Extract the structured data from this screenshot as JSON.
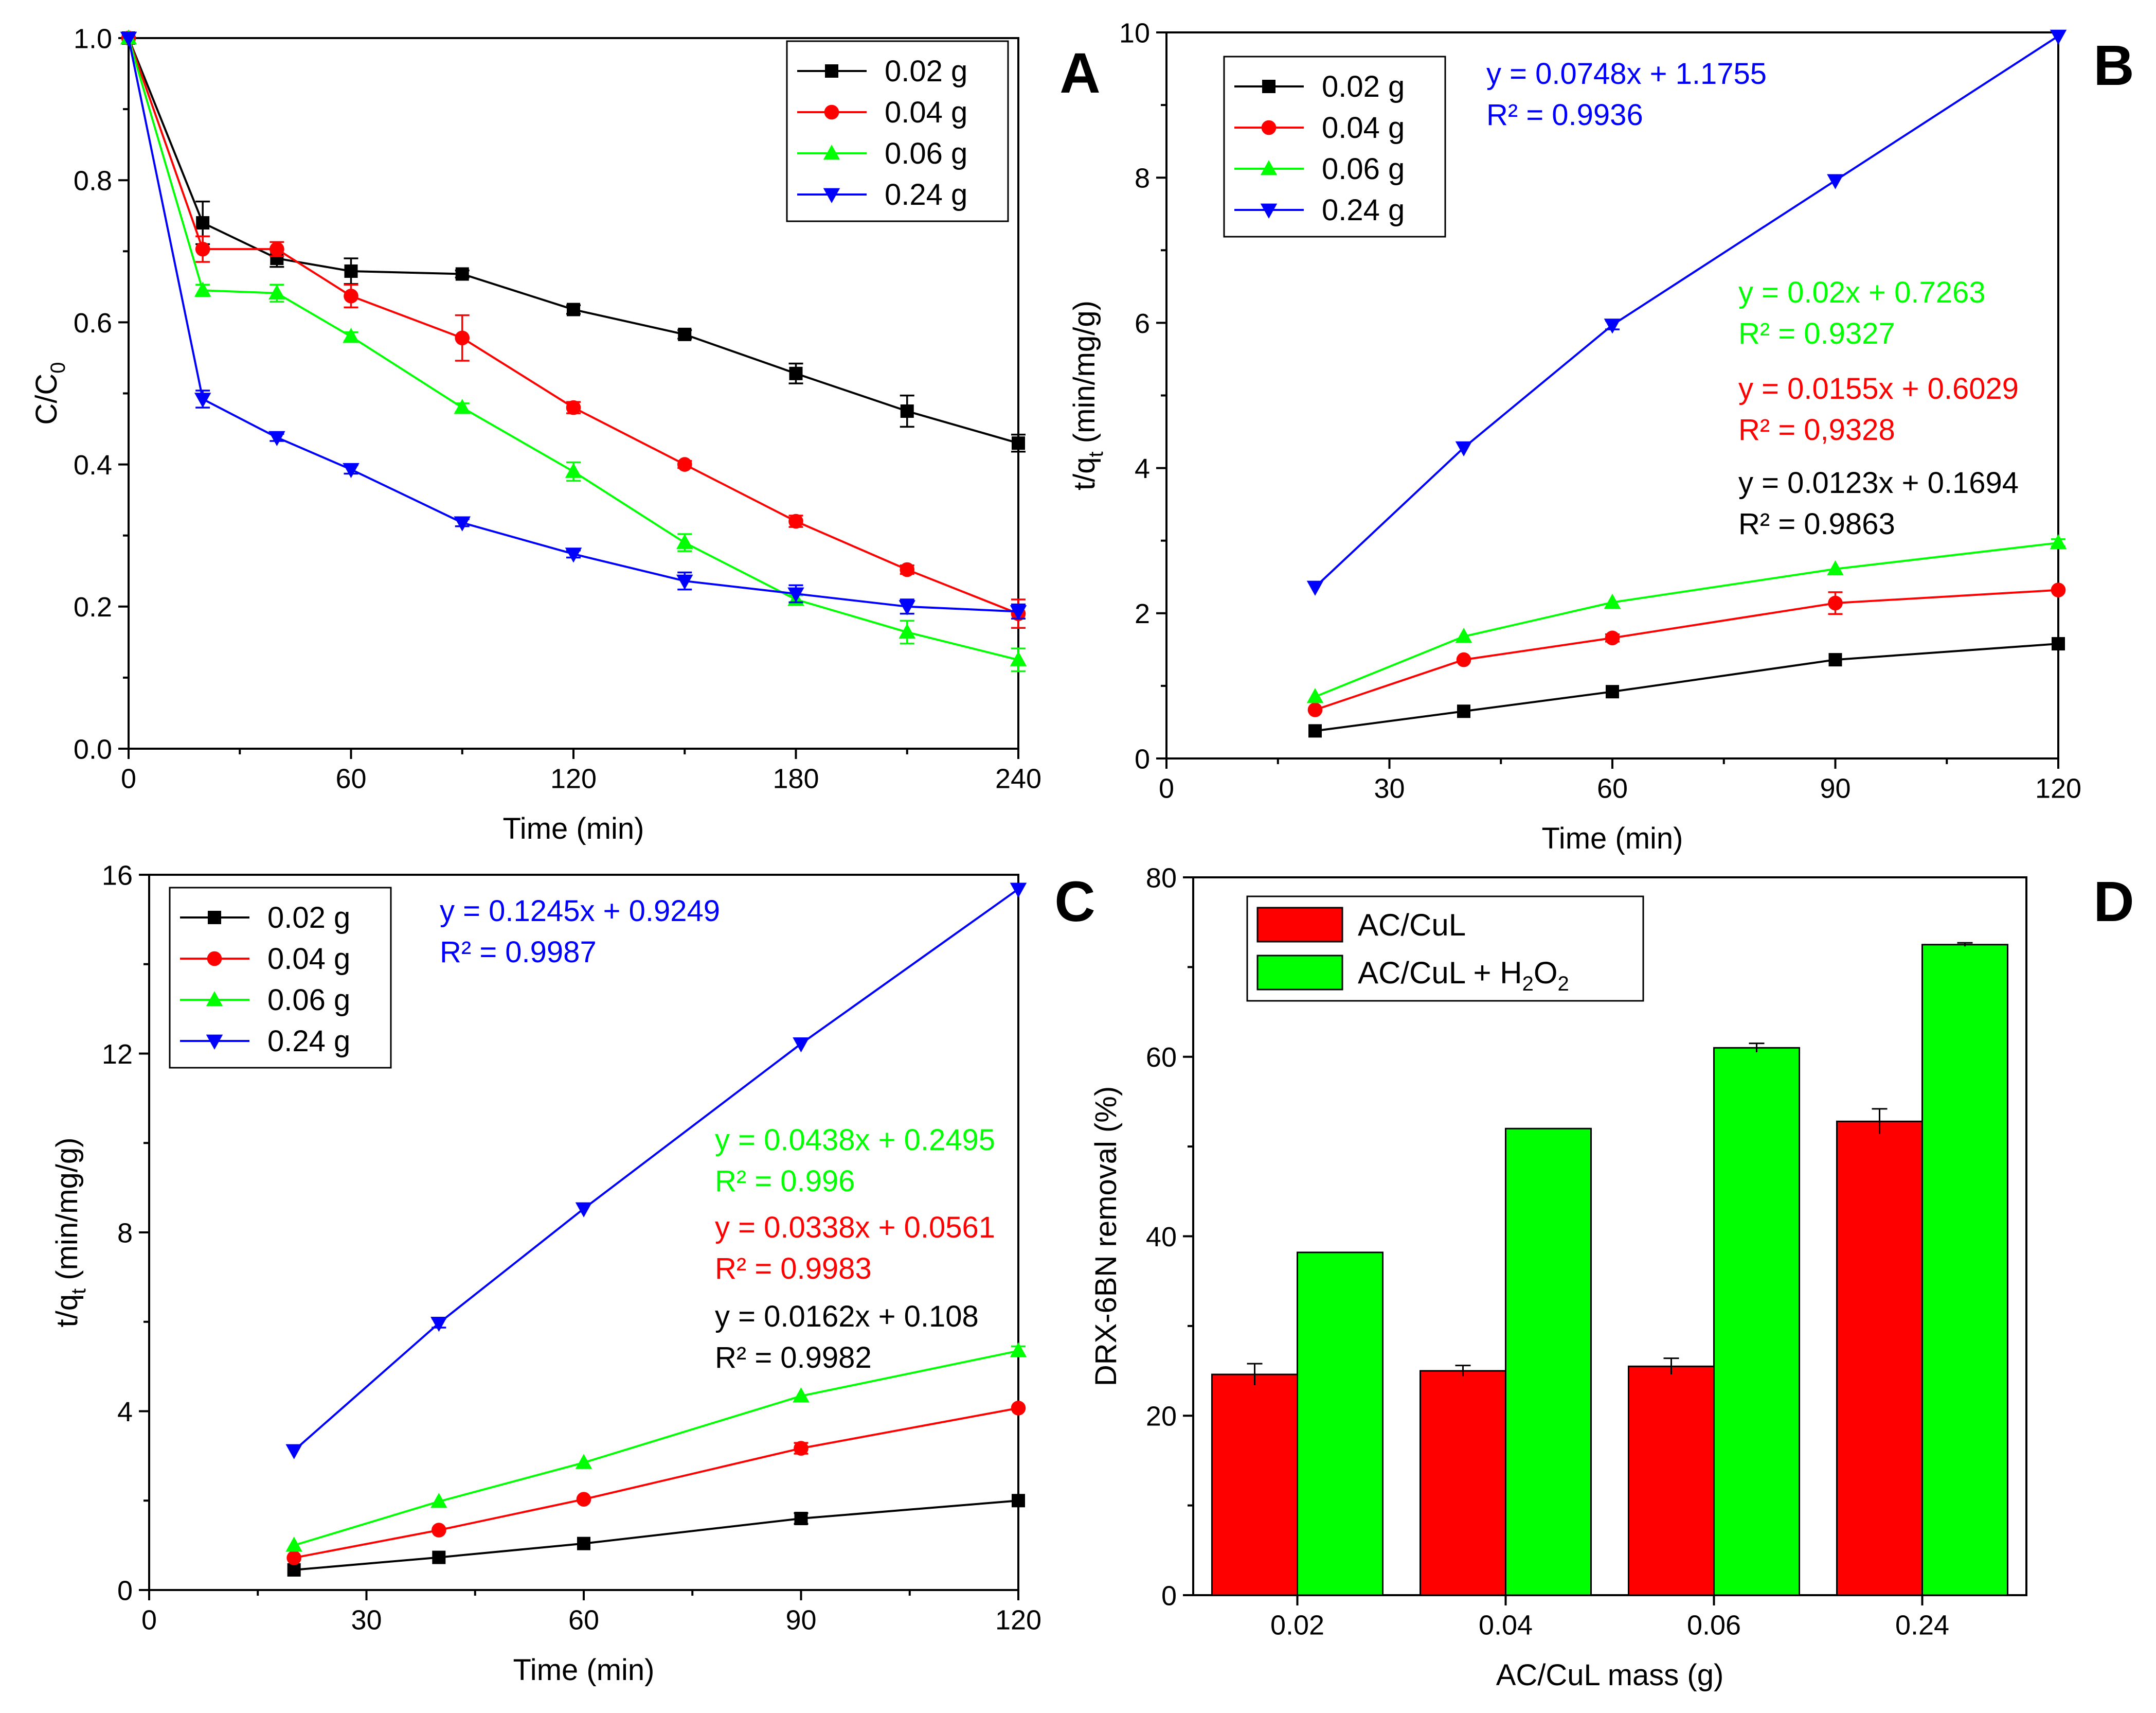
{
  "figure": {
    "description_free": true
  },
  "chart_data": [
    {
      "panel": "A",
      "type": "line",
      "title": "",
      "xlabel": "Time (min)",
      "ylabel": "C/C0",
      "ylabel_main": "C/C",
      "ylabel_sub": "0",
      "xlim": [
        0,
        240
      ],
      "ylim": [
        0,
        1.0
      ],
      "xticks": [
        0,
        60,
        120,
        180,
        240
      ],
      "xtick_labels": [
        "0",
        "60",
        "120",
        "180",
        "240"
      ],
      "yticks": [
        0,
        0.2,
        0.4,
        0.6,
        0.8,
        1.0
      ],
      "ytick_labels": [
        "0.0",
        "0.2",
        "0.4",
        "0.6",
        "0.8",
        "1.0"
      ],
      "legend_position": "top-right",
      "series": [
        {
          "name": "0.02 g",
          "color": "#000000",
          "marker": "square",
          "x": [
            0,
            20,
            40,
            60,
            90,
            120,
            150,
            180,
            210,
            240
          ],
          "y": [
            1.0,
            0.74,
            0.69,
            0.672,
            0.668,
            0.618,
            0.583,
            0.528,
            0.475,
            0.43
          ],
          "err": [
            0,
            0.03,
            0.012,
            0.018,
            0.005,
            0.006,
            0.006,
            0.014,
            0.022,
            0.012
          ]
        },
        {
          "name": "0.04 g",
          "color": "#ff0000",
          "marker": "circle",
          "x": [
            0,
            20,
            40,
            60,
            90,
            120,
            150,
            180,
            210,
            240
          ],
          "y": [
            1.0,
            0.703,
            0.703,
            0.637,
            0.578,
            0.48,
            0.4,
            0.32,
            0.252,
            0.19
          ],
          "err": [
            0,
            0.018,
            0.01,
            0.016,
            0.032,
            0.008,
            0.005,
            0.008,
            0.006,
            0.02
          ]
        },
        {
          "name": "0.06 g",
          "color": "#00ff00",
          "marker": "triangle-up",
          "x": [
            0,
            20,
            40,
            60,
            90,
            120,
            150,
            180,
            210,
            240
          ],
          "y": [
            1.0,
            0.645,
            0.641,
            0.58,
            0.48,
            0.39,
            0.29,
            0.21,
            0.164,
            0.125
          ],
          "err": [
            0,
            0.008,
            0.012,
            0.006,
            0.006,
            0.013,
            0.012,
            0.006,
            0.016,
            0.016
          ]
        },
        {
          "name": "0.24 g",
          "color": "#0000ff",
          "marker": "triangle-down",
          "x": [
            0,
            20,
            40,
            60,
            90,
            120,
            150,
            180,
            210,
            240
          ],
          "y": [
            1.0,
            0.492,
            0.438,
            0.393,
            0.318,
            0.274,
            0.236,
            0.218,
            0.2,
            0.193
          ],
          "err": [
            0,
            0.012,
            0.005,
            0.006,
            0.005,
            0.005,
            0.012,
            0.012,
            0.01,
            0.01
          ]
        }
      ],
      "annotations": []
    },
    {
      "panel": "B",
      "type": "line",
      "title": "",
      "xlabel": "Time (min)",
      "ylabel": "t/qt (min/mg/g)",
      "ylabel_main": "t/q",
      "ylabel_sub": "t",
      "ylabel_rest": " (min/mg/g)",
      "xlim": [
        0,
        120
      ],
      "ylim": [
        0,
        10
      ],
      "xticks": [
        0,
        30,
        60,
        90,
        120
      ],
      "xtick_labels": [
        "0",
        "30",
        "60",
        "90",
        "120"
      ],
      "yticks": [
        0,
        2,
        4,
        6,
        8,
        10
      ],
      "ytick_labels": [
        "0",
        "2",
        "4",
        "6",
        "8",
        "10"
      ],
      "legend_position": "top-left",
      "series": [
        {
          "name": "0.02 g",
          "color": "#000000",
          "marker": "square",
          "x": [
            20,
            40,
            60,
            90,
            120
          ],
          "y": [
            0.38,
            0.65,
            0.92,
            1.36,
            1.58
          ],
          "err": [
            0,
            0,
            0,
            0,
            0
          ]
        },
        {
          "name": "0.04 g",
          "color": "#ff0000",
          "marker": "circle",
          "x": [
            20,
            40,
            60,
            90,
            120
          ],
          "y": [
            0.67,
            1.36,
            1.66,
            2.14,
            2.32
          ],
          "err": [
            0,
            0,
            0.05,
            0.15,
            0
          ]
        },
        {
          "name": "0.06 g",
          "color": "#00ff00",
          "marker": "triangle-up",
          "x": [
            20,
            40,
            60,
            90,
            120
          ],
          "y": [
            0.85,
            1.68,
            2.15,
            2.61,
            2.97
          ],
          "err": [
            0,
            0,
            0,
            0,
            0.05
          ]
        },
        {
          "name": "0.24 g",
          "color": "#0000ff",
          "marker": "triangle-down",
          "x": [
            20,
            40,
            60,
            90,
            120
          ],
          "y": [
            2.36,
            4.28,
            5.97,
            7.96,
            9.95
          ],
          "err": [
            0,
            0,
            0.06,
            0,
            0
          ]
        }
      ],
      "annotations": [
        {
          "line1": "y = 0.0748x + 1.1755",
          "line2": "R² = 0.9936",
          "color": "#0000ff"
        },
        {
          "line1": "y = 0.02x + 0.7263",
          "line2": "R² = 0.9327",
          "color": "#00ff00"
        },
        {
          "line1": "y = 0.0155x + 0.6029",
          "line2": "R² = 0,9328",
          "color": "#ff0000"
        },
        {
          "line1": "y = 0.0123x + 0.1694",
          "line2": "R² = 0.9863",
          "color": "#000000"
        }
      ]
    },
    {
      "panel": "C",
      "type": "line",
      "title": "",
      "xlabel": "Time (min)",
      "ylabel": "t/qt (min/mg/g)",
      "ylabel_main": "t/q",
      "ylabel_sub": "t",
      "ylabel_rest": " (min/mg/g)",
      "xlim": [
        0,
        120
      ],
      "ylim": [
        0,
        16
      ],
      "xticks": [
        0,
        30,
        60,
        90,
        120
      ],
      "xtick_labels": [
        "0",
        "30",
        "60",
        "90",
        "120"
      ],
      "yticks": [
        0,
        4,
        8,
        12,
        16
      ],
      "ytick_labels": [
        "0",
        "4",
        "8",
        "12",
        "16"
      ],
      "legend_position": "top-left",
      "series": [
        {
          "name": "0.02 g",
          "color": "#000000",
          "marker": "square",
          "x": [
            20,
            40,
            60,
            90,
            120
          ],
          "y": [
            0.45,
            0.73,
            1.04,
            1.6,
            2.0
          ],
          "err": [
            0,
            0,
            0,
            0.12,
            0
          ]
        },
        {
          "name": "0.04 g",
          "color": "#ff0000",
          "marker": "circle",
          "x": [
            20,
            40,
            60,
            90,
            120
          ],
          "y": [
            0.72,
            1.34,
            2.03,
            3.17,
            4.07
          ],
          "err": [
            0,
            0,
            0,
            0.12,
            0
          ]
        },
        {
          "name": "0.06 g",
          "color": "#00ff00",
          "marker": "triangle-up",
          "x": [
            20,
            40,
            60,
            90,
            120
          ],
          "y": [
            1.0,
            1.98,
            2.85,
            4.34,
            5.35
          ],
          "err": [
            0,
            0,
            0,
            0,
            0.1
          ]
        },
        {
          "name": "0.24 g",
          "color": "#0000ff",
          "marker": "triangle-down",
          "x": [
            20,
            40,
            60,
            90,
            120
          ],
          "y": [
            3.12,
            5.97,
            8.53,
            12.22,
            15.68
          ],
          "err": [
            0,
            0.1,
            0,
            0,
            0
          ]
        }
      ],
      "annotations": [
        {
          "line1": "y = 0.1245x + 0.9249",
          "line2": "R² = 0.9987",
          "color": "#0000ff"
        },
        {
          "line1": "y = 0.0438x + 0.2495",
          "line2": "R² = 0.996",
          "color": "#00ff00"
        },
        {
          "line1": "y = 0.0338x + 0.0561",
          "line2": "R² = 0.9983",
          "color": "#ff0000"
        },
        {
          "line1": "y = 0.0162x + 0.108",
          "line2": "R² = 0.9982",
          "color": "#000000"
        }
      ]
    },
    {
      "panel": "D",
      "type": "bar",
      "title": "",
      "xlabel": "AC/CuL mass (g)",
      "ylabel": "DRX-6BN removal (%)",
      "categories": [
        "0.02",
        "0.04",
        "0.06",
        "0.24"
      ],
      "ylim": [
        0,
        80
      ],
      "yticks": [
        0,
        20,
        40,
        60,
        80
      ],
      "ytick_labels": [
        "0",
        "20",
        "40",
        "60",
        "80"
      ],
      "legend_position": "top-left",
      "series": [
        {
          "name": "AC/CuL",
          "color": "#ff0000",
          "values": [
            24.6,
            25.0,
            25.5,
            52.8
          ],
          "err": [
            1.2,
            0.6,
            0.9,
            1.4
          ]
        },
        {
          "name": "AC/CuL + H2O2",
          "name_parts": [
            "AC/CuL + H",
            "2",
            "O",
            "2"
          ],
          "color": "#00ff00",
          "values": [
            38.2,
            52.0,
            61.0,
            72.5
          ],
          "err": [
            0,
            0,
            0.5,
            0.2
          ]
        }
      ]
    }
  ]
}
